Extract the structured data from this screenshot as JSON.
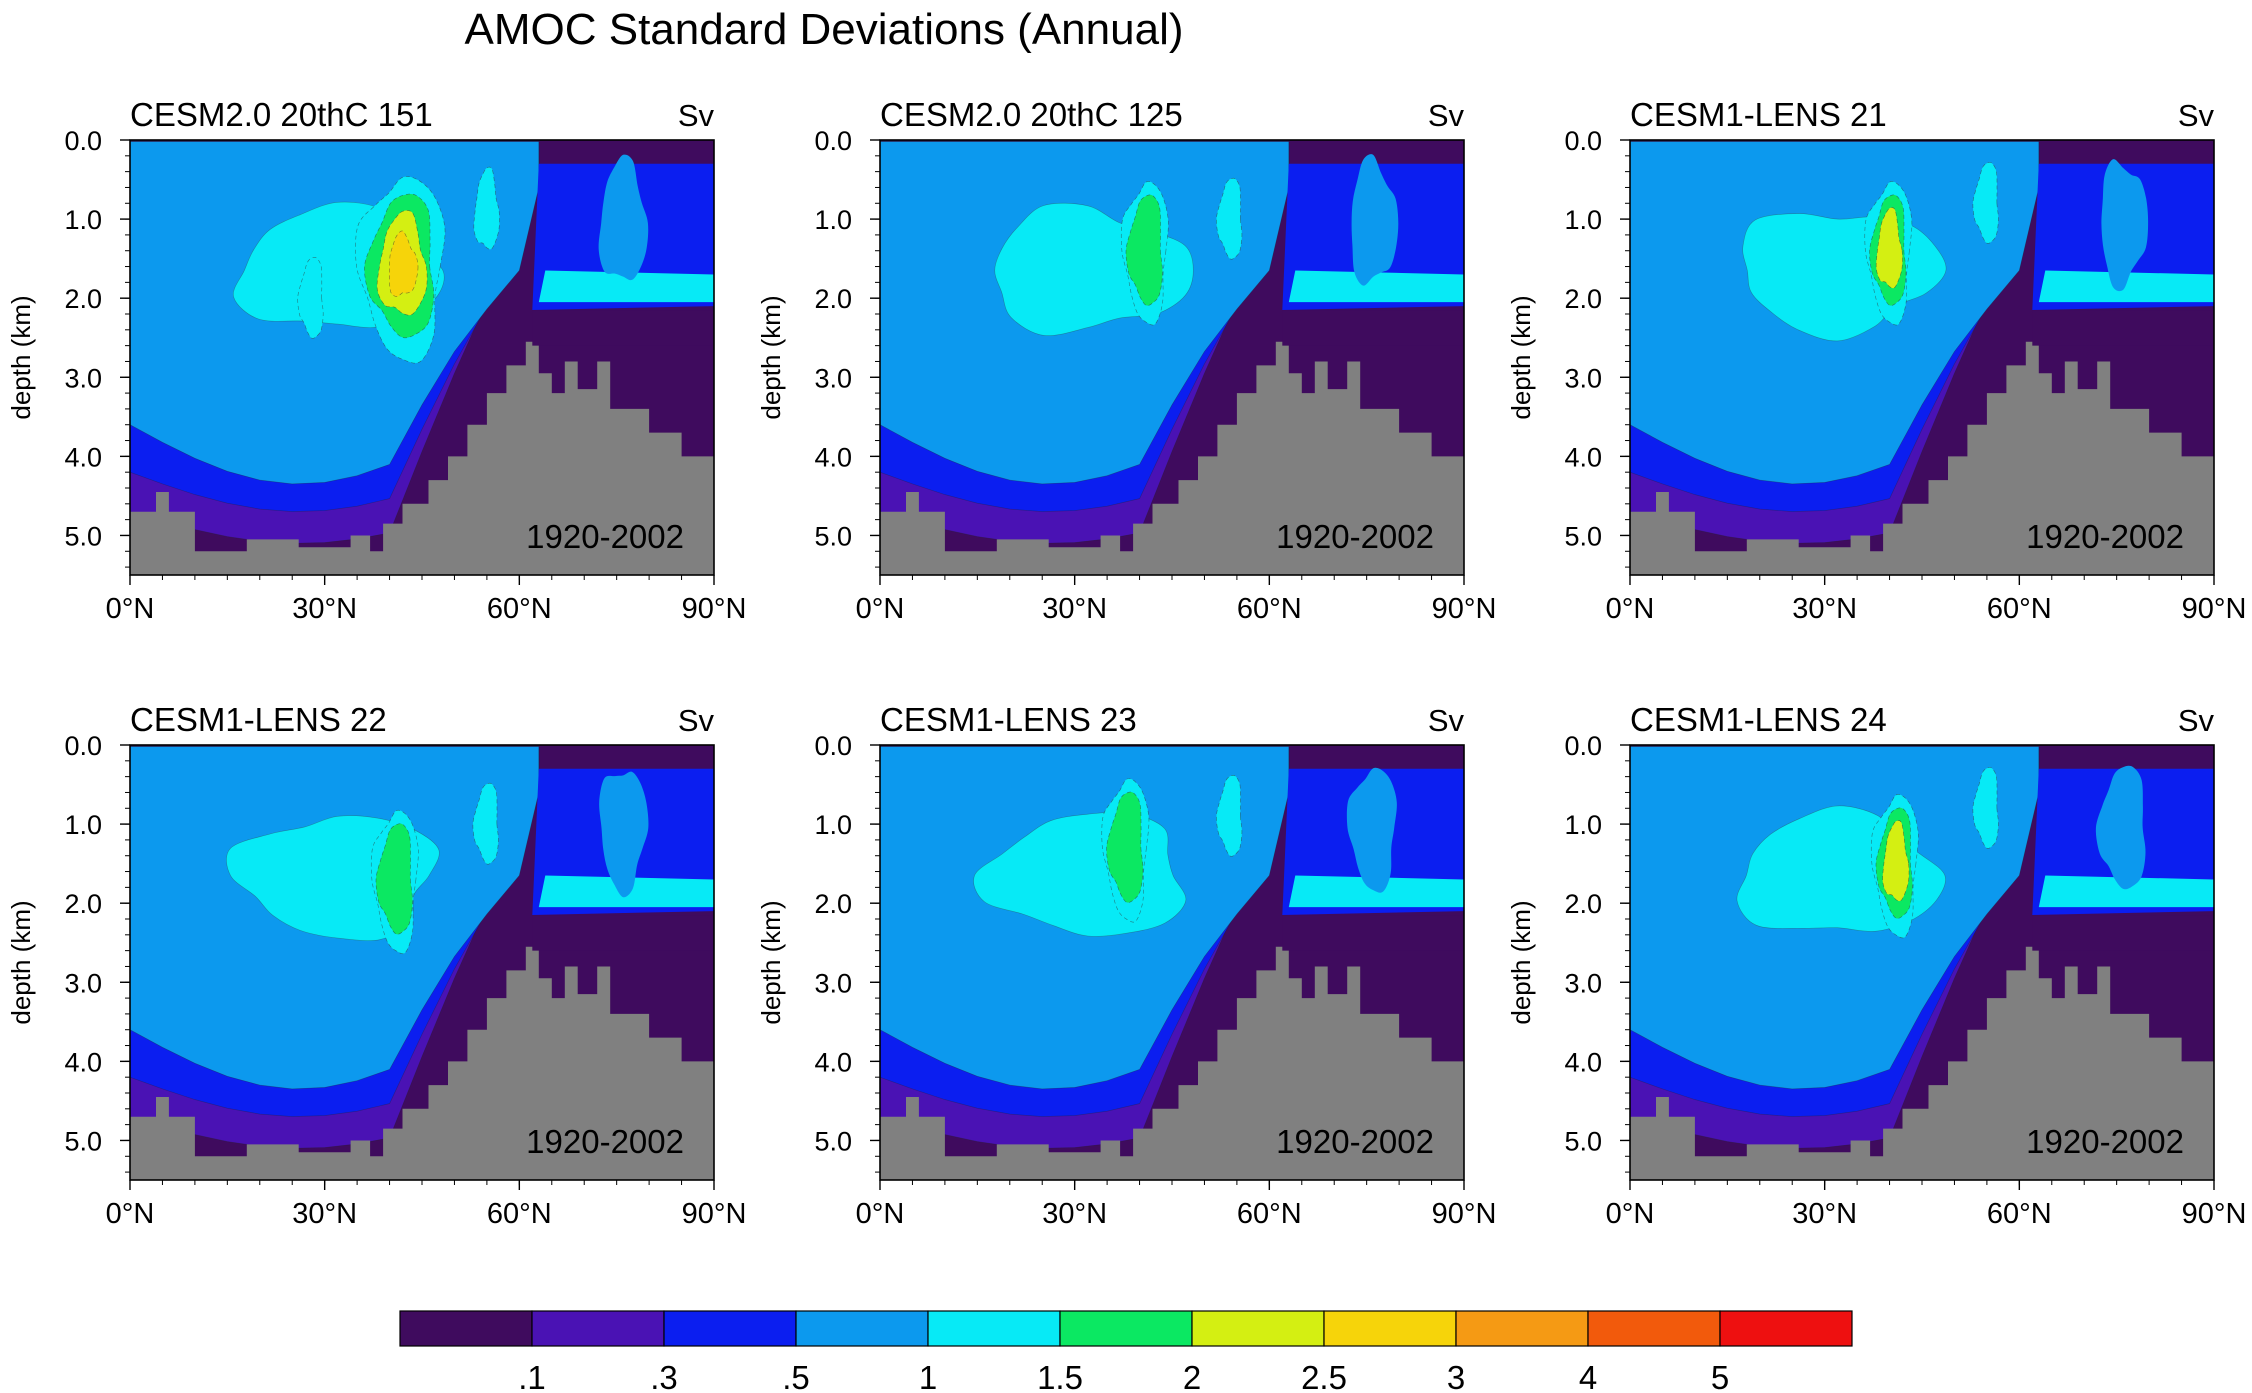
{
  "figure_title": "AMOC Standard Deviations (Annual)",
  "chart_data": {
    "type": "heatmap",
    "subtype": "filled-contour",
    "units": "Sv",
    "xlabel": "",
    "ylabel": "depth (km)",
    "xlim": [
      0,
      90
    ],
    "ylim": [
      0,
      5.5
    ],
    "x_tick_values": [
      0,
      30,
      60,
      90
    ],
    "x_tick_labels": [
      "0°N",
      "30°N",
      "60°N",
      "90°N"
    ],
    "y_tick_values": [
      0,
      1,
      2,
      3,
      4,
      5
    ],
    "y_tick_labels": [
      "0.0",
      "1.0",
      "2.0",
      "3.0",
      "4.0",
      "5.0"
    ],
    "colorbar": {
      "levels": [
        0.1,
        0.3,
        0.5,
        1,
        1.5,
        2,
        2.5,
        3,
        4,
        5
      ],
      "labels": [
        ".1",
        ".3",
        ".5",
        "1",
        "1.5",
        "2",
        "2.5",
        "3",
        "4",
        "5"
      ],
      "colors": [
        "#3f0b5e",
        "#4a12b4",
        "#0b1ef0",
        "#0c99ee",
        "#07eaf6",
        "#0be862",
        "#d4ef12",
        "#f6d40a",
        "#f59a14",
        "#f25a0c",
        "#ee1010"
      ]
    },
    "land_color": "#808080",
    "panels": [
      {
        "title": "CESM2.0 20thC 151",
        "units_label": "Sv",
        "period": "1920-2002",
        "peak_level": 7,
        "cores": [
          {
            "lat": 42,
            "depth": 1.6,
            "level": 7
          },
          {
            "lat": 28,
            "depth": 2.0,
            "level": 4
          },
          {
            "lat": 55,
            "depth": 0.9,
            "level": 4
          }
        ]
      },
      {
        "title": "CESM2.0 20thC 125",
        "units_label": "Sv",
        "period": "1920-2002",
        "peak_level": 5,
        "cores": [
          {
            "lat": 41,
            "depth": 1.4,
            "level": 5
          },
          {
            "lat": 54,
            "depth": 1.0,
            "level": 4
          }
        ]
      },
      {
        "title": "CESM1-LENS 21",
        "units_label": "Sv",
        "period": "1920-2002",
        "peak_level": 6,
        "cores": [
          {
            "lat": 40,
            "depth": 1.4,
            "level": 6
          },
          {
            "lat": 55,
            "depth": 0.8,
            "level": 4
          }
        ]
      },
      {
        "title": "CESM1-LENS 22",
        "units_label": "Sv",
        "period": "1920-2002",
        "peak_level": 5,
        "cores": [
          {
            "lat": 41,
            "depth": 1.7,
            "level": 5
          },
          {
            "lat": 55,
            "depth": 1.0,
            "level": 4
          }
        ]
      },
      {
        "title": "CESM1-LENS 23",
        "units_label": "Sv",
        "period": "1920-2002",
        "peak_level": 5,
        "cores": [
          {
            "lat": 38,
            "depth": 1.3,
            "level": 5
          },
          {
            "lat": 54,
            "depth": 0.9,
            "level": 4
          }
        ]
      },
      {
        "title": "CESM1-LENS 24",
        "units_label": "Sv",
        "period": "1920-2002",
        "peak_level": 6,
        "cores": [
          {
            "lat": 41,
            "depth": 1.5,
            "level": 6
          },
          {
            "lat": 55,
            "depth": 0.8,
            "level": 4
          }
        ]
      }
    ]
  }
}
